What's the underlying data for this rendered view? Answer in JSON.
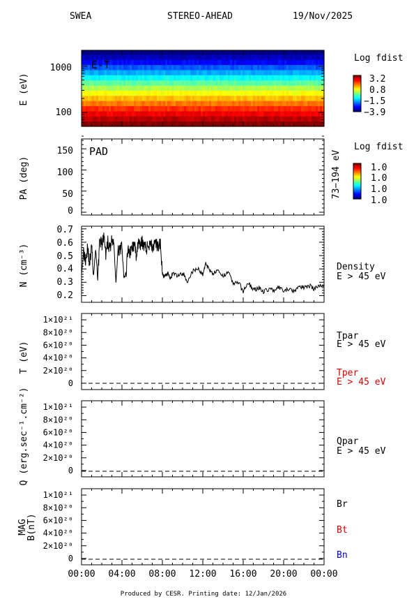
{
  "header": {
    "instrument": "SWEA",
    "spacecraft": "STEREO-AHEAD",
    "date": "19/Nov/2025"
  },
  "footer": "Produced by CESR.   Printing date: 12/Jan/2026",
  "colors": {
    "black": "#000000",
    "red": "#dd0000",
    "blue": "#0000cc"
  },
  "chart_data": [
    {
      "type": "heatmap",
      "panel": "energy-time",
      "label": "E-T",
      "ylabel": "E (eV)",
      "y_scale": "log",
      "ylim": [
        50,
        2200
      ],
      "y_ticks": [
        "1000",
        "100"
      ],
      "x_ticks": [
        "00:00",
        "04:00",
        "08:00",
        "12:00",
        "16:00",
        "20:00",
        "00:00"
      ],
      "xlim_hours": [
        0,
        24
      ],
      "energy_bins_eV": [
        2000,
        1550,
        1200,
        930,
        720,
        560,
        430,
        335,
        260,
        200,
        155,
        120,
        93,
        72,
        56
      ],
      "log_fdist_by_bin": [
        -3.9,
        -3.5,
        -3.0,
        -2.4,
        -1.8,
        -1.2,
        -0.6,
        0.0,
        0.5,
        1.0,
        1.5,
        2.0,
        2.4,
        2.8,
        3.2
      ],
      "colorbar": {
        "title": "Log fdist",
        "ticks": [
          "3.2",
          "0.8",
          "−1.5",
          "−3.9"
        ],
        "range": [
          -3.9,
          3.2
        ]
      }
    },
    {
      "type": "heatmap",
      "panel": "pitch-angle",
      "label": "PAD",
      "ylabel": "PA (deg)",
      "ylim": [
        0,
        180
      ],
      "y_ticks": [
        "150",
        "100",
        "50",
        "0"
      ],
      "right_label": "73−194 eV",
      "colorbar": {
        "title": "Log fdist",
        "ticks": [
          "1.0",
          "1.0",
          "1.0",
          "1.0"
        ]
      }
    },
    {
      "type": "line",
      "panel": "density",
      "ylabel": "N (cm⁻³)",
      "ylim": [
        0.15,
        0.72
      ],
      "y_ticks": [
        "0.7",
        "0.6",
        "0.5",
        "0.4",
        "0.3",
        "0.2"
      ],
      "legend": [
        "Density",
        "E > 45 eV"
      ],
      "xlim_hours": [
        0,
        24
      ],
      "series": [
        {
          "x": [
            0.0,
            0.2,
            0.4,
            0.6,
            0.8,
            1.0,
            1.2,
            1.4,
            1.6,
            1.8,
            2.0,
            2.2,
            2.4,
            2.6,
            2.8,
            3.0,
            3.2,
            3.4,
            3.6,
            3.8,
            4.0,
            4.2,
            4.4,
            4.6,
            4.8,
            5.0,
            5.2,
            5.4,
            5.6,
            5.8,
            6.0,
            6.2,
            6.4,
            6.6,
            6.8,
            7.0,
            7.2,
            7.4,
            7.6,
            7.8,
            8.0,
            8.2,
            8.4,
            8.6,
            8.8,
            9.0,
            9.5,
            10.0,
            10.5,
            11.0,
            11.5,
            12.0,
            12.3,
            12.6,
            13.0,
            13.5,
            14.0,
            14.5,
            15.0,
            15.5,
            16.0,
            16.5,
            17.0,
            17.5,
            18.0,
            18.5,
            19.0,
            19.5,
            20.0,
            20.5,
            21.0,
            21.5,
            22.0,
            22.5,
            23.0,
            23.5,
            24.0
          ],
          "y": [
            0.38,
            0.52,
            0.47,
            0.56,
            0.44,
            0.57,
            0.35,
            0.55,
            0.33,
            0.62,
            0.58,
            0.64,
            0.5,
            0.6,
            0.55,
            0.62,
            0.58,
            0.3,
            0.52,
            0.56,
            0.55,
            0.33,
            0.36,
            0.57,
            0.52,
            0.56,
            0.58,
            0.51,
            0.59,
            0.57,
            0.6,
            0.58,
            0.55,
            0.57,
            0.61,
            0.56,
            0.57,
            0.58,
            0.55,
            0.6,
            0.36,
            0.34,
            0.36,
            0.37,
            0.33,
            0.36,
            0.35,
            0.37,
            0.31,
            0.38,
            0.4,
            0.36,
            0.44,
            0.4,
            0.37,
            0.38,
            0.34,
            0.39,
            0.29,
            0.3,
            0.23,
            0.3,
            0.24,
            0.26,
            0.23,
            0.25,
            0.24,
            0.26,
            0.23,
            0.25,
            0.23,
            0.27,
            0.26,
            0.28,
            0.25,
            0.27,
            0.28
          ]
        }
      ]
    },
    {
      "type": "line",
      "panel": "temperature",
      "ylabel": "T (eV)",
      "ylim": [
        -1e+20,
        1.1e+21
      ],
      "y_ticks": [
        "1×10²¹",
        "8×10²⁰",
        "6×10²⁰",
        "4×10²⁰",
        "2×10²⁰",
        "0"
      ],
      "legend": [
        "Tpar",
        "E > 45 eV",
        "Tper",
        "E > 45 eV"
      ],
      "series": [
        {
          "name": "Tpar",
          "x": [
            0,
            24
          ],
          "y": [
            0,
            0
          ]
        },
        {
          "name": "Tper",
          "x": [
            0,
            24
          ],
          "y": [
            0,
            0
          ]
        }
      ]
    },
    {
      "type": "line",
      "panel": "heat-flux",
      "ylabel": "Q (erg.sec⁻¹.cm⁻²)",
      "ylim": [
        -1e+20,
        1.1e+21
      ],
      "y_ticks": [
        "1×10²¹",
        "8×10²⁰",
        "6×10²⁰",
        "4×10²⁰",
        "2×10²⁰",
        "0"
      ],
      "legend": [
        "Qpar",
        "E > 45 eV"
      ],
      "series": [
        {
          "name": "Qpar",
          "x": [
            0,
            24
          ],
          "y": [
            0,
            0
          ]
        }
      ]
    },
    {
      "type": "line",
      "panel": "magnetic-field",
      "ylabel": [
        "MAG",
        "B(nT)"
      ],
      "ylim": [
        -1e+20,
        1.1e+21
      ],
      "y_ticks": [
        "1×10²¹",
        "8×10²⁰",
        "6×10²⁰",
        "4×10²⁰",
        "2×10²⁰",
        "0"
      ],
      "legend": [
        "Br",
        "Bt",
        "Bn"
      ],
      "series": [
        {
          "name": "Br",
          "x": [
            0,
            24
          ],
          "y": [
            0,
            0
          ]
        },
        {
          "name": "Bt",
          "x": [
            0,
            24
          ],
          "y": [
            0,
            0
          ]
        },
        {
          "name": "Bn",
          "x": [
            0,
            24
          ],
          "y": [
            0,
            0
          ]
        }
      ],
      "x_ticks": [
        "00:00",
        "04:00",
        "08:00",
        "12:00",
        "16:00",
        "20:00",
        "00:00"
      ]
    }
  ]
}
